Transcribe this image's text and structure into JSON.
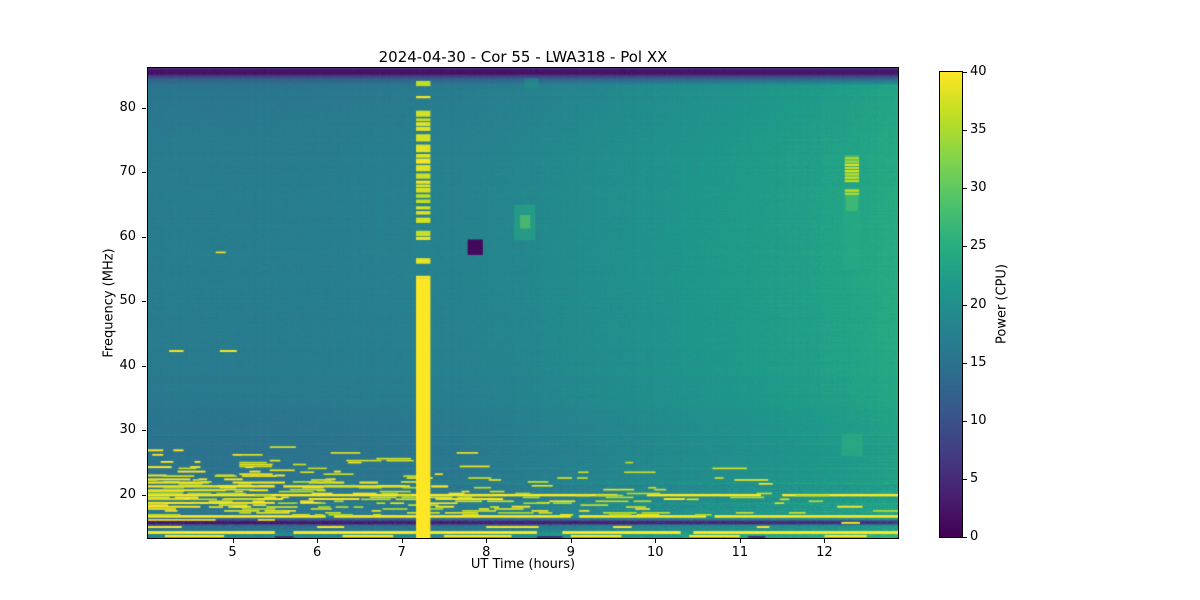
{
  "chart_data": {
    "type": "heatmap",
    "title": "2024-04-30 - Cor 55 - LWA318 - Pol XX",
    "xlabel": "UT Time (hours)",
    "ylabel": "Frequency (MHz)",
    "colorbar_label": "Power (CPU)",
    "colormap": "viridis",
    "colormap_stops": [
      "#440154",
      "#482173",
      "#433e85",
      "#38598c",
      "#2d708e",
      "#25858e",
      "#1e9b8a",
      "#2ab07f",
      "#52c569",
      "#86d549",
      "#c2df23",
      "#fde725"
    ],
    "x_range": [
      4.0,
      12.87
    ],
    "y_range": [
      13.3,
      86.2
    ],
    "x_ticks": [
      5,
      6,
      7,
      8,
      9,
      10,
      11,
      12
    ],
    "y_ticks": [
      20,
      30,
      40,
      50,
      60,
      70,
      80
    ],
    "colorbar_range": [
      0,
      40
    ],
    "colorbar_ticks": [
      0,
      5,
      10,
      15,
      20,
      25,
      30,
      35,
      40
    ],
    "legend": "none",
    "grid": false,
    "noise_seed": 20240430,
    "background": {
      "x": [
        4.0,
        5.0,
        6.0,
        7.0,
        8.0,
        9.0,
        10.0,
        11.0,
        12.0,
        12.5,
        12.87
      ],
      "col_base": [
        17.0,
        17.0,
        17.2,
        17.6,
        18.3,
        19.5,
        20.8,
        22.0,
        23.2,
        24.0,
        24.8
      ],
      "rows": [
        {
          "f": 13.3,
          "delta": 2.0
        },
        {
          "f": 13.9,
          "delta": 3.0
        },
        {
          "f": 14.5,
          "delta": 0.3
        },
        {
          "f": 15.0,
          "delta": -0.8
        },
        {
          "f": 15.3,
          "delta": -4.0
        },
        {
          "f": 15.5,
          "values": [
            4,
            4,
            4,
            4.5,
            5,
            5,
            5.5,
            6,
            6.5,
            7,
            7.5
          ]
        },
        {
          "f": 15.9,
          "values": [
            4.5,
            4.5,
            4.5,
            5,
            5.5,
            5.5,
            6,
            6.5,
            7,
            7.5,
            8
          ]
        },
        {
          "f": 16.15,
          "delta": -5.0
        },
        {
          "f": 16.45,
          "delta": -0.5
        },
        {
          "f": 17.2,
          "delta": -0.3
        },
        {
          "f": 18.5,
          "delta": -0.5
        },
        {
          "f": 20.5,
          "delta": -1.0
        },
        {
          "f": 23.0,
          "delta": -1.6
        },
        {
          "f": 26.0,
          "delta": -1.9
        },
        {
          "f": 29.0,
          "delta": -1.5
        },
        {
          "f": 33.0,
          "delta": -0.9
        },
        {
          "f": 40.0,
          "delta": -0.2
        },
        {
          "f": 50.0,
          "delta": 0.0
        },
        {
          "f": 60.0,
          "delta": 0.1
        },
        {
          "f": 70.0,
          "delta": -0.1
        },
        {
          "f": 78.0,
          "delta": -0.5
        },
        {
          "f": 83.5,
          "delta": -1.2
        },
        {
          "f": 84.3,
          "values": [
            13,
            13,
            13,
            13.2,
            13.5,
            13.8,
            14,
            14.2,
            14.5,
            14.7,
            15
          ]
        },
        {
          "f": 84.8,
          "values": [
            9,
            9,
            9,
            9,
            9.2,
            9.4,
            9.6,
            9.8,
            10,
            10,
            10
          ]
        },
        {
          "f": 85.3,
          "values": [
            2,
            2,
            2,
            2,
            2,
            2.2,
            2.2,
            2.4,
            2.4,
            2.6,
            2.6
          ]
        },
        {
          "f": 85.9,
          "values": [
            2.5,
            2.5,
            2.5,
            2.5,
            2.5,
            2.7,
            2.7,
            3,
            3,
            3,
            3
          ]
        },
        {
          "f": 86.2,
          "values": [
            6,
            6,
            6,
            6,
            6,
            6,
            6,
            6.5,
            6.5,
            6.5,
            6.5
          ]
        }
      ]
    },
    "streaks": [
      {
        "y": 26.9,
        "h": 0.3,
        "v": 40,
        "segments": [
          [
            4.0,
            4.18
          ],
          [
            4.3,
            4.42
          ]
        ]
      },
      {
        "y": 26.2,
        "h": 0.28,
        "v": 40,
        "segments": [
          [
            4.05,
            4.18
          ],
          [
            5.0,
            5.1
          ]
        ]
      },
      {
        "y": 25.1,
        "h": 0.28,
        "v": 40,
        "segments": [
          [
            4.15,
            4.3
          ],
          [
            4.55,
            4.62
          ]
        ]
      },
      {
        "y": 24.3,
        "h": 0.3,
        "v": 40,
        "segments": [
          [
            4.0,
            4.28
          ],
          [
            4.5,
            4.62
          ],
          [
            5.15,
            5.25
          ]
        ]
      },
      {
        "y": 23.6,
        "h": 0.3,
        "v": 40,
        "segments": [
          [
            4.35,
            4.68
          ],
          [
            5.2,
            5.33
          ],
          [
            6.2,
            6.28
          ]
        ]
      },
      {
        "y": 23.0,
        "h": 0.3,
        "v": 40,
        "segments": [
          [
            4.0,
            4.22
          ],
          [
            4.8,
            5.02
          ],
          [
            5.5,
            5.62
          ]
        ]
      },
      {
        "y": 22.4,
        "h": 0.3,
        "v": 40,
        "segments": [
          [
            4.0,
            4.5
          ],
          [
            4.6,
            4.7
          ],
          [
            4.9,
            5.12
          ],
          [
            6.1,
            6.22
          ]
        ]
      },
      {
        "y": 21.9,
        "h": 0.32,
        "v": 40,
        "segments": [
          [
            4.0,
            4.72
          ],
          [
            5.0,
            5.62
          ],
          [
            5.9,
            6.32
          ],
          [
            6.5,
            6.72
          ]
        ]
      },
      {
        "y": 21.3,
        "h": 0.35,
        "v": 40,
        "segments": [
          [
            4.0,
            5.5
          ],
          [
            5.6,
            7.1
          ],
          [
            7.35,
            7.55
          ]
        ]
      },
      {
        "y": 20.7,
        "h": 0.3,
        "v": 40,
        "segments": [
          [
            4.0,
            4.92
          ],
          [
            5.2,
            5.42
          ],
          [
            6.0,
            6.1
          ]
        ]
      },
      {
        "y": 19.95,
        "h": 0.38,
        "v": 40,
        "segments": [
          [
            4.0,
            9.55
          ],
          [
            9.9,
            11.25
          ],
          [
            11.5,
            12.87
          ]
        ]
      },
      {
        "y": 19.35,
        "h": 0.3,
        "v": 40,
        "segments": [
          [
            4.0,
            4.6
          ],
          [
            4.9,
            5.6
          ],
          [
            5.9,
            6.5
          ],
          [
            7.4,
            8.2
          ],
          [
            10.1,
            10.35
          ]
        ]
      },
      {
        "y": 18.75,
        "h": 0.3,
        "v": 40,
        "segments": [
          [
            4.0,
            5.5
          ],
          [
            5.8,
            6.05
          ],
          [
            8.6,
            8.75
          ]
        ]
      },
      {
        "y": 18.15,
        "h": 0.3,
        "v": 40,
        "segments": [
          [
            4.0,
            4.62
          ],
          [
            5.0,
            5.22
          ],
          [
            7.4,
            7.62
          ],
          [
            8.3,
            8.52
          ],
          [
            12.15,
            12.45
          ]
        ]
      },
      {
        "y": 17.5,
        "h": 0.25,
        "v": 40,
        "segments": [
          [
            4.2,
            4.35
          ],
          [
            5.6,
            5.75
          ],
          [
            9.1,
            9.22
          ]
        ]
      },
      {
        "y": 16.65,
        "h": 0.4,
        "v": 40,
        "segments": [
          [
            4.0,
            6.1
          ],
          [
            6.2,
            9.0
          ],
          [
            9.1,
            10.6
          ],
          [
            10.7,
            12.87
          ]
        ]
      },
      {
        "y": 16.1,
        "h": 0.25,
        "v": 40,
        "segments": [
          [
            4.0,
            4.8
          ],
          [
            5.3,
            5.5
          ]
        ]
      },
      {
        "y": 15.65,
        "h": 0.3,
        "v": 40,
        "segments": [
          [
            12.2,
            12.42
          ]
        ]
      },
      {
        "y": 15.0,
        "h": 0.3,
        "v": 40,
        "segments": [
          [
            4.0,
            4.4
          ],
          [
            6.0,
            6.32
          ],
          [
            8.0,
            8.62
          ],
          [
            9.5,
            9.72
          ],
          [
            11.2,
            11.35
          ]
        ]
      },
      {
        "y": 14.15,
        "h": 0.45,
        "v": 40,
        "segments": [
          [
            4.0,
            5.5
          ],
          [
            5.72,
            8.6
          ],
          [
            8.9,
            10.3
          ],
          [
            10.45,
            12.87
          ]
        ]
      },
      {
        "y": 13.6,
        "h": 0.35,
        "v": 40,
        "segments": [
          [
            4.2,
            4.9
          ],
          [
            6.3,
            6.9
          ],
          [
            7.5,
            8.3
          ],
          [
            9.0,
            9.6
          ],
          [
            10.4,
            11.0
          ],
          [
            12.0,
            12.5
          ]
        ]
      },
      {
        "y": 13.45,
        "h": 0.3,
        "v": 5,
        "segments": [
          [
            5.5,
            5.72
          ],
          [
            8.6,
            8.9
          ],
          [
            11.1,
            11.3
          ]
        ]
      },
      {
        "y": 42.3,
        "h": 0.3,
        "v": 40,
        "segments": [
          [
            4.25,
            4.42
          ],
          [
            4.85,
            5.05
          ]
        ]
      },
      {
        "y": 57.6,
        "h": 0.25,
        "v": 40,
        "segments": [
          [
            4.8,
            4.92
          ]
        ]
      }
    ],
    "vertical_stripe": {
      "x": [
        7.17,
        7.34
      ],
      "solid_y": [
        13.3,
        53.5
      ],
      "dash_y": [
        53.5,
        85.6
      ],
      "dash_fill": 0.78,
      "v": 40
    },
    "blobs": [
      {
        "type": "soft",
        "x": [
          8.33,
          8.58
        ],
        "y": [
          59.5,
          65.0
        ],
        "v": 25,
        "alpha": 0.5
      },
      {
        "type": "soft",
        "x": [
          8.4,
          8.52
        ],
        "y": [
          61.3,
          63.4
        ],
        "v": 30,
        "alpha": 0.6
      },
      {
        "type": "soft",
        "x": [
          8.45,
          8.62
        ],
        "y": [
          83.0,
          84.6
        ],
        "v": 21,
        "alpha": 0.5
      },
      {
        "type": "soft",
        "x": [
          12.22,
          12.42
        ],
        "y": [
          55.0,
          66.5
        ],
        "v": 25,
        "alpha": 0.45
      },
      {
        "type": "soft",
        "x": [
          12.2,
          12.45
        ],
        "y": [
          26.0,
          29.5
        ],
        "v": 26,
        "alpha": 0.5
      },
      {
        "type": "rect",
        "x": [
          12.25,
          12.4
        ],
        "y": [
          64.0,
          66.5
        ],
        "v": 27
      },
      {
        "type": "dashcol",
        "x": [
          12.24,
          12.41
        ],
        "y": [
          66.5,
          72.6
        ],
        "v": 38,
        "fill": 0.78
      },
      {
        "type": "rect",
        "x": [
          7.78,
          7.96
        ],
        "y": [
          57.2,
          59.6
        ],
        "v": 1
      }
    ],
    "bottom_noise": {
      "y_min": 16.9,
      "y_max": 27.6,
      "base_p": 0.22
    },
    "row_noise": {
      "amp_low": 1.2,
      "amp_mid": 0.8,
      "amp_high": 0.35
    }
  }
}
